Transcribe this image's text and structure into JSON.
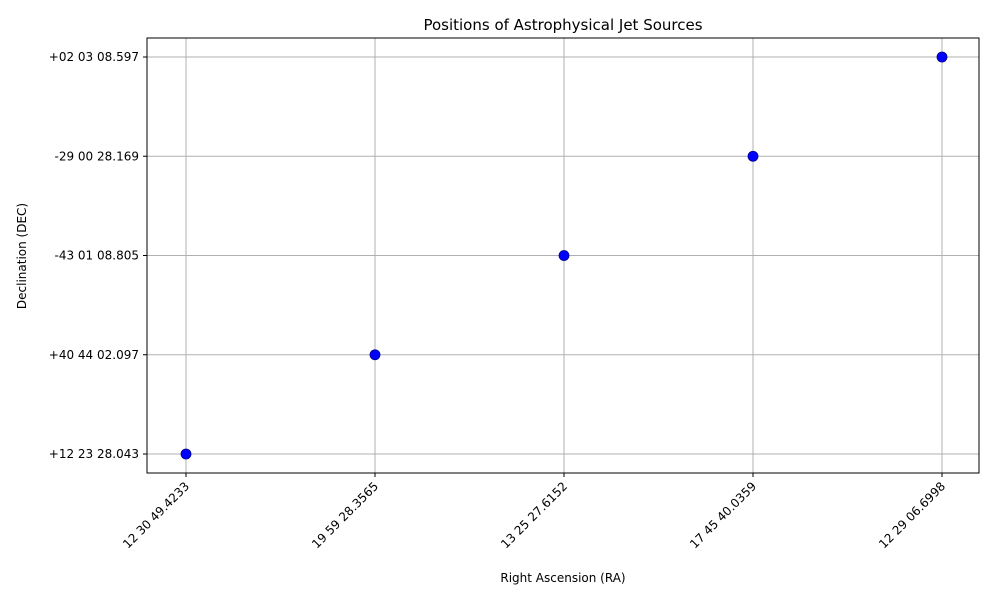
{
  "chart_data": {
    "type": "scatter",
    "title": "Positions of Astrophysical Jet Sources",
    "xlabel": "Right Ascension (RA)",
    "ylabel": "Declination (DEC)",
    "x_categories": [
      "12 30 49.4233",
      "19 59 28.3565",
      "13 25 27.6152",
      "17 45 40.0359",
      "12 29 06.6998"
    ],
    "y_categories": [
      "+12 23 28.043",
      "+40 44 02.097",
      "-43 01 08.805",
      "-29 00 28.169",
      "+02 03 08.597"
    ],
    "points": [
      {
        "x": "12 30 49.4233",
        "y": "+12 23 28.043"
      },
      {
        "x": "19 59 28.3565",
        "y": "+40 44 02.097"
      },
      {
        "x": "13 25 27.6152",
        "y": "-43 01 08.805"
      },
      {
        "x": "17 45 40.0359",
        "y": "-29 00 28.169"
      },
      {
        "x": "12 29 06.6998",
        "y": "+02 03 08.597"
      }
    ],
    "marker_color": "#0000ff",
    "grid": true
  }
}
